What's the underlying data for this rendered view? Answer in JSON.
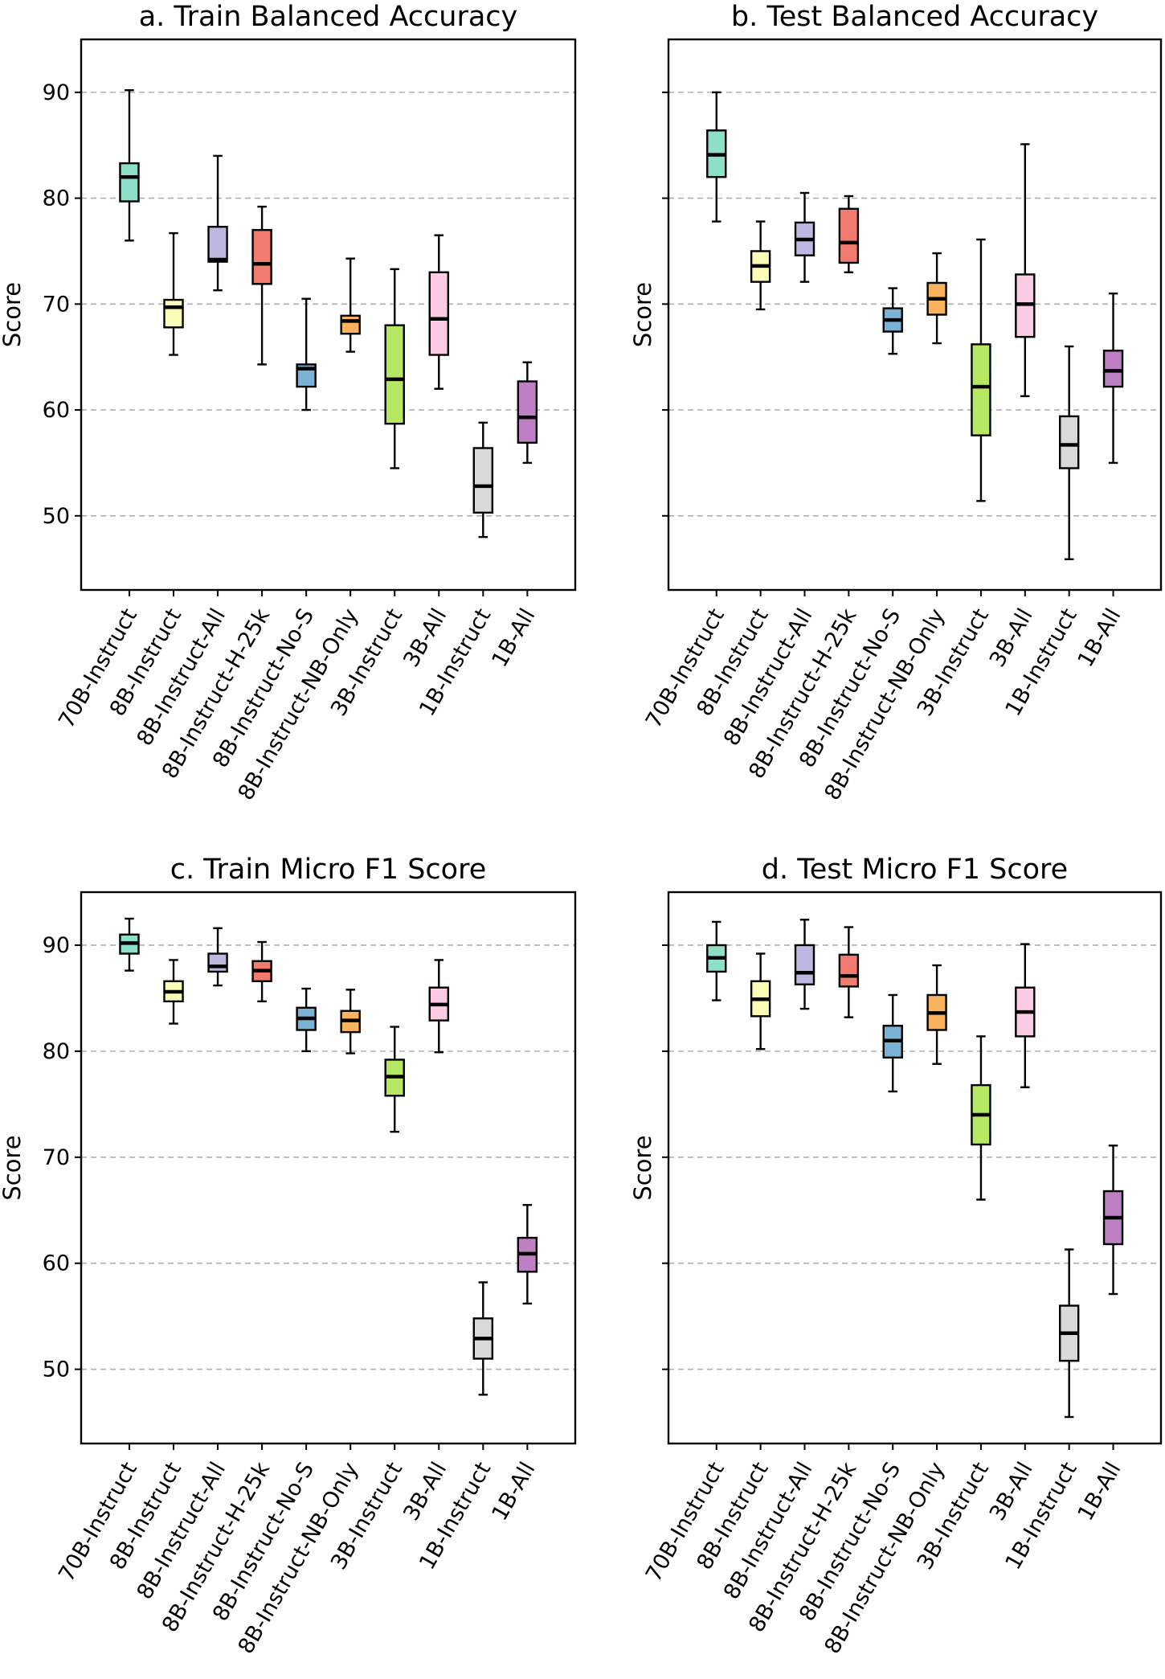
{
  "chart_data": [
    {
      "type": "box",
      "panel": "a",
      "title": "a. Train Balanced Accuracy",
      "ylabel": "Score",
      "xlabel": "",
      "ylim": [
        43,
        95
      ],
      "yticks": [
        50,
        60,
        70,
        80,
        90
      ],
      "show_ytick_labels": true,
      "grid": "y",
      "categories": [
        "70B-Instruct",
        "8B-Instruct",
        "8B-Instruct-All",
        "8B-Instruct-H-25k",
        "8B-Instruct-No-S",
        "8B-Instruct-NB-Only",
        "3B-Instruct",
        "3B-All",
        "1B-Instruct",
        "1B-All"
      ],
      "colors": [
        "#8ddfc8",
        "#fdfcb6",
        "#bdb8df",
        "#f17b6f",
        "#79b2d5",
        "#fbb35f",
        "#b7e864",
        "#fbcbe5",
        "#d9d9d9",
        "#bd80c3"
      ],
      "boxes": [
        {
          "min": 76.0,
          "q1": 79.7,
          "median": 82.0,
          "q3": 83.3,
          "max": 90.2
        },
        {
          "min": 65.2,
          "q1": 67.8,
          "median": 69.7,
          "q3": 70.4,
          "max": 76.7
        },
        {
          "min": 71.3,
          "q1": 74.0,
          "median": 74.2,
          "q3": 77.3,
          "max": 84.0
        },
        {
          "min": 64.3,
          "q1": 71.9,
          "median": 73.8,
          "q3": 77.0,
          "max": 79.2
        },
        {
          "min": 60.0,
          "q1": 62.2,
          "median": 63.9,
          "q3": 64.3,
          "max": 70.5
        },
        {
          "min": 65.5,
          "q1": 67.2,
          "median": 68.4,
          "q3": 68.9,
          "max": 74.3
        },
        {
          "min": 54.5,
          "q1": 58.7,
          "median": 62.9,
          "q3": 68.0,
          "max": 73.3
        },
        {
          "min": 62.0,
          "q1": 65.2,
          "median": 68.6,
          "q3": 73.0,
          "max": 76.5
        },
        {
          "min": 48.0,
          "q1": 50.3,
          "median": 52.8,
          "q3": 56.4,
          "max": 58.8
        },
        {
          "min": 55.0,
          "q1": 56.9,
          "median": 59.3,
          "q3": 62.7,
          "max": 64.5
        }
      ]
    },
    {
      "type": "box",
      "panel": "b",
      "title": "b. Test Balanced Accuracy",
      "ylabel": "Score",
      "xlabel": "",
      "ylim": [
        43,
        95
      ],
      "yticks": [
        50,
        60,
        70,
        80,
        90
      ],
      "show_ytick_labels": false,
      "grid": "y",
      "categories": [
        "70B-Instruct",
        "8B-Instruct",
        "8B-Instruct-All",
        "8B-Instruct-H-25k",
        "8B-Instruct-No-S",
        "8B-Instruct-NB-Only",
        "3B-Instruct",
        "3B-All",
        "1B-Instruct",
        "1B-All"
      ],
      "colors": [
        "#8ddfc8",
        "#fdfcb6",
        "#bdb8df",
        "#f17b6f",
        "#79b2d5",
        "#fbb35f",
        "#b7e864",
        "#fbcbe5",
        "#d9d9d9",
        "#bd80c3"
      ],
      "boxes": [
        {
          "min": 77.8,
          "q1": 82.0,
          "median": 84.1,
          "q3": 86.4,
          "max": 90.0
        },
        {
          "min": 69.5,
          "q1": 72.1,
          "median": 73.6,
          "q3": 75.0,
          "max": 77.8
        },
        {
          "min": 72.1,
          "q1": 74.6,
          "median": 76.1,
          "q3": 77.7,
          "max": 80.5
        },
        {
          "min": 73.0,
          "q1": 73.9,
          "median": 75.8,
          "q3": 79.0,
          "max": 80.2
        },
        {
          "min": 65.3,
          "q1": 67.4,
          "median": 68.5,
          "q3": 69.6,
          "max": 71.5
        },
        {
          "min": 66.3,
          "q1": 69.0,
          "median": 70.5,
          "q3": 72.0,
          "max": 74.8
        },
        {
          "min": 51.4,
          "q1": 57.6,
          "median": 62.2,
          "q3": 66.2,
          "max": 76.1
        },
        {
          "min": 61.3,
          "q1": 66.9,
          "median": 70.0,
          "q3": 72.8,
          "max": 85.1
        },
        {
          "min": 45.9,
          "q1": 54.5,
          "median": 56.7,
          "q3": 59.4,
          "max": 66.0
        },
        {
          "min": 55.0,
          "q1": 62.2,
          "median": 63.7,
          "q3": 65.6,
          "max": 71.0
        }
      ]
    },
    {
      "type": "box",
      "panel": "c",
      "title": "c. Train Micro F1 Score",
      "ylabel": "Score",
      "xlabel": "",
      "ylim": [
        43,
        95
      ],
      "yticks": [
        50,
        60,
        70,
        80,
        90
      ],
      "show_ytick_labels": true,
      "grid": "y",
      "categories": [
        "70B-Instruct",
        "8B-Instruct",
        "8B-Instruct-All",
        "8B-Instruct-H-25k",
        "8B-Instruct-No-S",
        "8B-Instruct-NB-Only",
        "3B-Instruct",
        "3B-All",
        "1B-Instruct",
        "1B-All"
      ],
      "colors": [
        "#8ddfc8",
        "#fdfcb6",
        "#bdb8df",
        "#f17b6f",
        "#79b2d5",
        "#fbb35f",
        "#b7e864",
        "#fbcbe5",
        "#d9d9d9",
        "#bd80c3"
      ],
      "boxes": [
        {
          "min": 87.6,
          "q1": 89.2,
          "median": 90.2,
          "q3": 91.0,
          "max": 92.5
        },
        {
          "min": 82.6,
          "q1": 84.7,
          "median": 85.6,
          "q3": 86.6,
          "max": 88.6
        },
        {
          "min": 86.2,
          "q1": 87.5,
          "median": 88.0,
          "q3": 89.2,
          "max": 91.6
        },
        {
          "min": 84.7,
          "q1": 86.6,
          "median": 87.6,
          "q3": 88.5,
          "max": 90.3
        },
        {
          "min": 80.0,
          "q1": 82.0,
          "median": 83.1,
          "q3": 84.1,
          "max": 85.9
        },
        {
          "min": 79.8,
          "q1": 81.8,
          "median": 82.9,
          "q3": 83.8,
          "max": 85.8
        },
        {
          "min": 72.4,
          "q1": 75.8,
          "median": 77.6,
          "q3": 79.2,
          "max": 82.3
        },
        {
          "min": 79.9,
          "q1": 82.9,
          "median": 84.4,
          "q3": 86.0,
          "max": 88.6
        },
        {
          "min": 47.6,
          "q1": 51.0,
          "median": 52.9,
          "q3": 54.8,
          "max": 58.2
        },
        {
          "min": 56.2,
          "q1": 59.2,
          "median": 60.9,
          "q3": 62.4,
          "max": 65.5
        }
      ]
    },
    {
      "type": "box",
      "panel": "d",
      "title": "d. Test Micro F1 Score",
      "ylabel": "Score",
      "xlabel": "",
      "ylim": [
        43,
        95
      ],
      "yticks": [
        50,
        60,
        70,
        80,
        90
      ],
      "show_ytick_labels": false,
      "grid": "y",
      "categories": [
        "70B-Instruct",
        "8B-Instruct",
        "8B-Instruct-All",
        "8B-Instruct-H-25k",
        "8B-Instruct-No-S",
        "8B-Instruct-NB-Only",
        "3B-Instruct",
        "3B-All",
        "1B-Instruct",
        "1B-All"
      ],
      "colors": [
        "#8ddfc8",
        "#fdfcb6",
        "#bdb8df",
        "#f17b6f",
        "#79b2d5",
        "#fbb35f",
        "#b7e864",
        "#fbcbe5",
        "#d9d9d9",
        "#bd80c3"
      ],
      "boxes": [
        {
          "min": 84.8,
          "q1": 87.5,
          "median": 88.8,
          "q3": 90.0,
          "max": 92.2
        },
        {
          "min": 80.2,
          "q1": 83.3,
          "median": 84.9,
          "q3": 86.6,
          "max": 89.2
        },
        {
          "min": 84.0,
          "q1": 86.3,
          "median": 87.4,
          "q3": 90.0,
          "max": 92.4
        },
        {
          "min": 83.2,
          "q1": 86.1,
          "median": 87.1,
          "q3": 89.1,
          "max": 91.7
        },
        {
          "min": 76.2,
          "q1": 79.4,
          "median": 81.0,
          "q3": 82.4,
          "max": 85.3
        },
        {
          "min": 78.8,
          "q1": 82.0,
          "median": 83.6,
          "q3": 85.3,
          "max": 88.1
        },
        {
          "min": 66.0,
          "q1": 71.2,
          "median": 74.0,
          "q3": 76.8,
          "max": 81.4
        },
        {
          "min": 76.6,
          "q1": 81.4,
          "median": 83.7,
          "q3": 86.0,
          "max": 90.1
        },
        {
          "min": 45.5,
          "q1": 50.8,
          "median": 53.4,
          "q3": 56.0,
          "max": 61.3
        },
        {
          "min": 57.1,
          "q1": 61.8,
          "median": 64.3,
          "q3": 66.8,
          "max": 71.1
        }
      ]
    }
  ]
}
